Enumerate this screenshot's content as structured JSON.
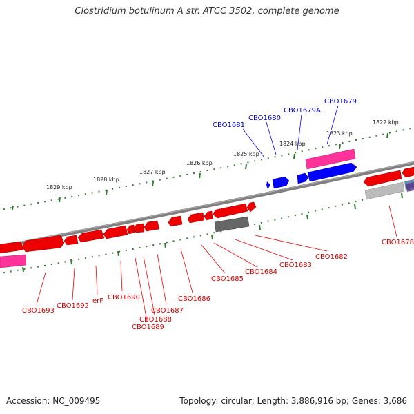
{
  "title": "Clostridium botulinum A str. ATCC 3502, complete genome",
  "footer": {
    "accession": "Accession: NC_009495",
    "summary": "Topology: circular; Length: 3,886,916 bp; Genes: 3,686"
  },
  "colors": {
    "forward_gene": "#0000ff",
    "reverse_gene": "#ee0000",
    "pink_feature": "#ff3399",
    "gray_feature": "#666666",
    "light_gray_feature": "#bbbbbb",
    "tick_mark": "#2e7d2e",
    "backbone": "#808080"
  },
  "scale_labels": [
    "1822 kbp",
    "1823 kbp",
    "1824 kbp",
    "1825 kbp",
    "1826 kbp",
    "1827 kbp",
    "1828 kbp",
    "1829 kbp"
  ],
  "forward_gene_labels": [
    "CBO1679",
    "CBO1679A",
    "CBO1680",
    "CBO1681"
  ],
  "reverse_gene_labels": [
    "CBO1678",
    "CBO1682",
    "CBO1683",
    "CBO1684",
    "CBO1685",
    "CBO1686",
    "CBO1687",
    "CBO1688",
    "CBO1689",
    "CBO1690",
    "erF",
    "CBO1692",
    "CBO1693"
  ]
}
